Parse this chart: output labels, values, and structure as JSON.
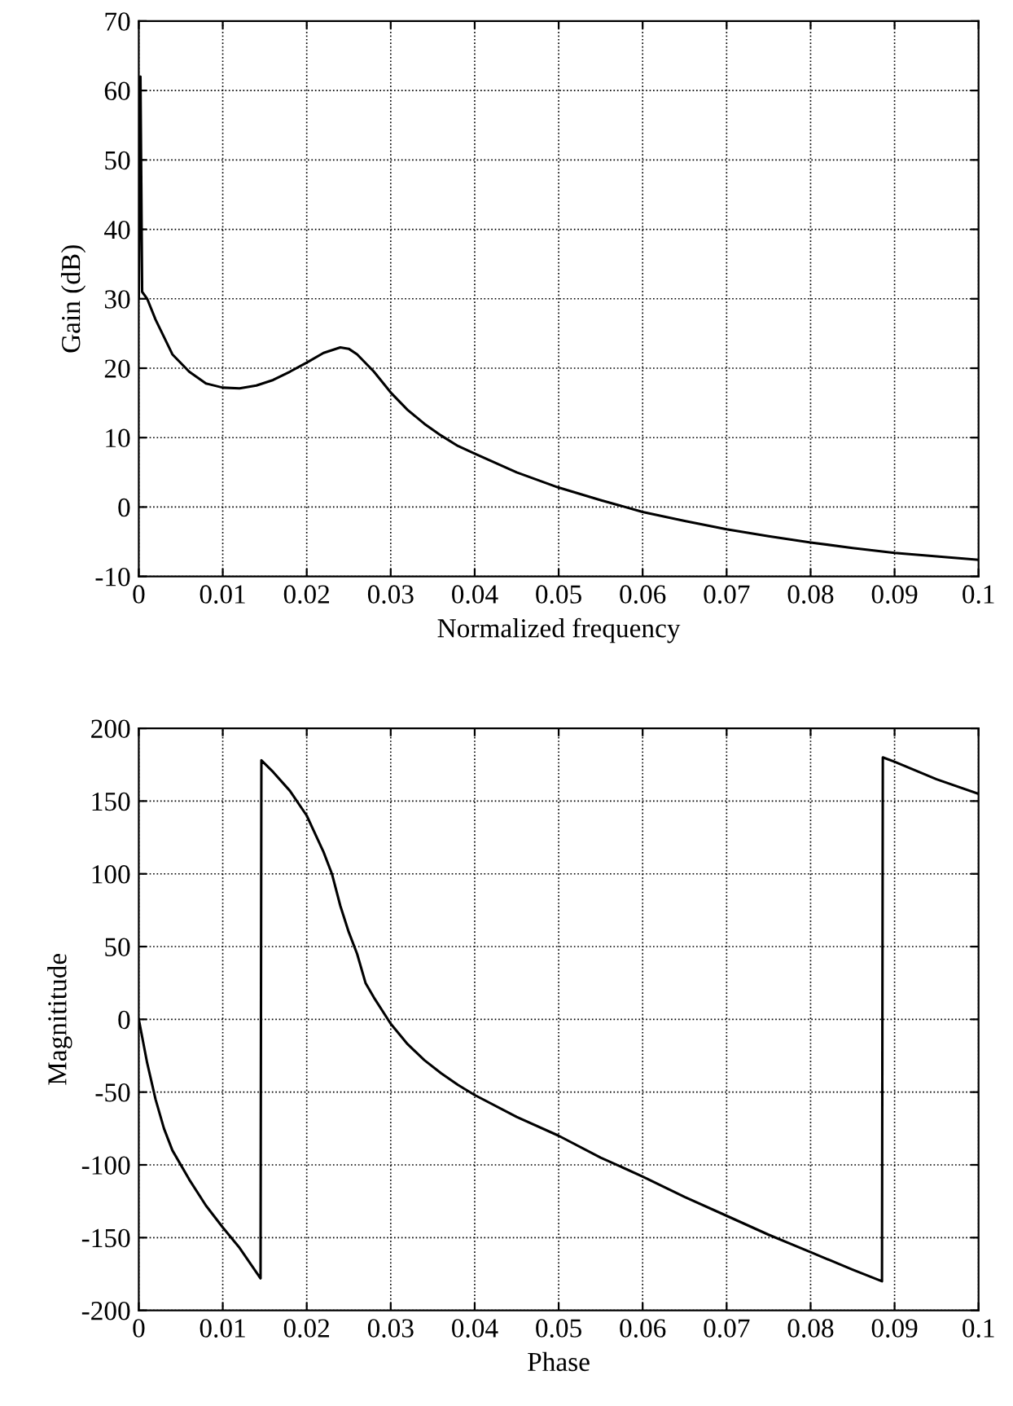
{
  "chart_data": [
    {
      "type": "line",
      "xlabel": "Normalized frequency",
      "ylabel": "Gain (dB)",
      "xlim": [
        0,
        0.1
      ],
      "ylim": [
        -10,
        70
      ],
      "xticks": [
        0,
        0.01,
        0.02,
        0.03,
        0.04,
        0.05,
        0.06,
        0.07,
        0.08,
        0.09,
        0.1
      ],
      "yticks": [
        -10,
        0,
        10,
        20,
        30,
        40,
        50,
        60,
        70
      ],
      "grid": true,
      "legend": false,
      "marker": "none",
      "line_style": "solid",
      "series": [
        {
          "color": "#000000",
          "x": [
            0,
            0.0002,
            0.0004,
            0.001,
            0.002,
            0.004,
            0.006,
            0.008,
            0.01,
            0.012,
            0.014,
            0.016,
            0.018,
            0.02,
            0.022,
            0.024,
            0.025,
            0.026,
            0.028,
            0.03,
            0.032,
            0.034,
            0.036,
            0.038,
            0.04,
            0.045,
            0.05,
            0.055,
            0.06,
            0.065,
            0.07,
            0.075,
            0.08,
            0.085,
            0.09,
            0.095,
            0.1
          ],
          "values": [
            30,
            62,
            31,
            30,
            27,
            22,
            19.5,
            17.8,
            17.2,
            17.1,
            17.5,
            18.3,
            19.5,
            20.8,
            22.2,
            23,
            22.8,
            22,
            19.5,
            16.5,
            14,
            12,
            10.3,
            8.8,
            7.7,
            5,
            2.8,
            1,
            -0.7,
            -2,
            -3.2,
            -4.2,
            -5.1,
            -5.9,
            -6.6,
            -7.1,
            -7.6
          ]
        }
      ]
    },
    {
      "type": "line",
      "xlabel": "Phase",
      "ylabel": "Magnititude",
      "xlim": [
        0,
        0.1
      ],
      "ylim": [
        -200,
        200
      ],
      "xticks": [
        0,
        0.01,
        0.02,
        0.03,
        0.04,
        0.05,
        0.06,
        0.07,
        0.08,
        0.09,
        0.1
      ],
      "yticks": [
        -200,
        -150,
        -100,
        -50,
        0,
        50,
        100,
        150,
        200
      ],
      "grid": true,
      "legend": false,
      "marker": "none",
      "line_style": "solid",
      "series": [
        {
          "color": "#000000",
          "x": [
            0,
            0.001,
            0.002,
            0.003,
            0.004,
            0.006,
            0.008,
            0.01,
            0.012,
            0.0145,
            0.0146,
            0.016,
            0.018,
            0.02,
            0.022,
            0.023,
            0.024,
            0.025,
            0.026,
            0.027,
            0.028,
            0.03,
            0.032,
            0.034,
            0.036,
            0.038,
            0.04,
            0.045,
            0.05,
            0.055,
            0.06,
            0.065,
            0.07,
            0.075,
            0.08,
            0.085,
            0.0885,
            0.0886,
            0.09,
            0.095,
            0.1
          ],
          "values": [
            0,
            -30,
            -55,
            -75,
            -90,
            -110,
            -128,
            -143,
            -157,
            -178,
            178,
            170,
            157,
            140,
            115,
            100,
            78,
            60,
            45,
            25,
            15,
            -3,
            -17,
            -28,
            -37,
            -45,
            -52,
            -67,
            -80,
            -95,
            -108,
            -122,
            -135,
            -148,
            -160,
            -172,
            -180,
            180,
            177,
            165,
            155
          ]
        }
      ]
    }
  ]
}
